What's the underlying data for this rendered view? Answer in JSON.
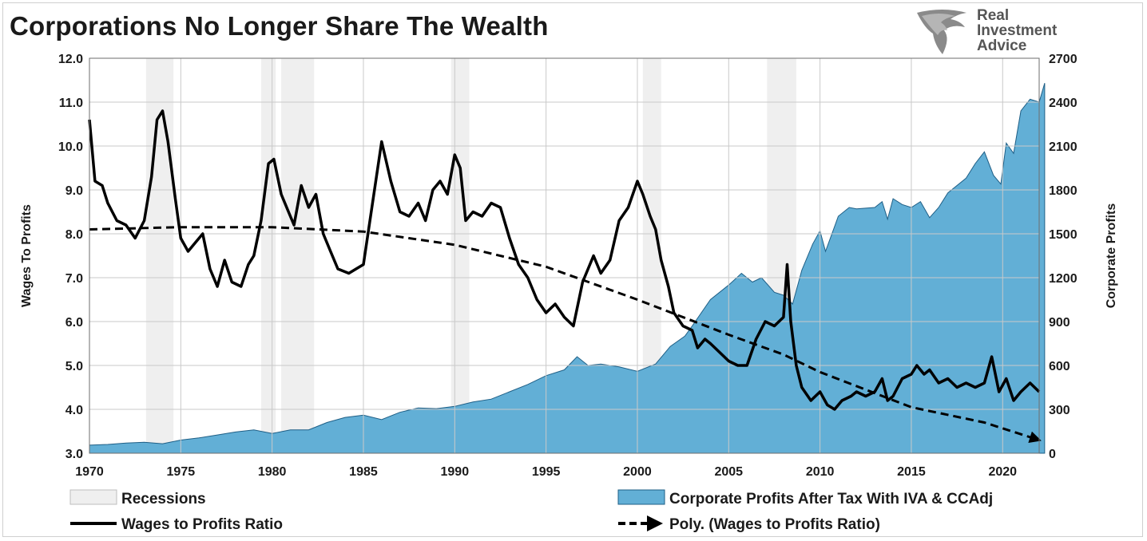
{
  "page": {
    "title": "Corporations No Longer Share The Wealth",
    "logo": {
      "line1": "Real",
      "line2": "Investment",
      "line3": "Advice",
      "icon": "eagle-head-icon"
    }
  },
  "colors": {
    "area_fill": "#62afd6",
    "area_edge": "#1f5f86",
    "ratio_line": "#000000",
    "poly_line": "#000000",
    "recession": "#efefef",
    "grid": "#c9c9c9"
  },
  "chart_data": {
    "type": "line",
    "title": "Corporations No Longer Share The Wealth",
    "xlim": [
      1970,
      2022
    ],
    "x_ticks": [
      "1970",
      "1975",
      "1980",
      "1985",
      "1990",
      "1995",
      "2000",
      "2005",
      "2010",
      "2015",
      "2020"
    ],
    "y_left": {
      "label": "Wages To Profits",
      "lim": [
        3.0,
        12.0
      ],
      "ticks": [
        "3.0",
        "4.0",
        "5.0",
        "6.0",
        "7.0",
        "8.0",
        "9.0",
        "10.0",
        "11.0",
        "12.0"
      ]
    },
    "y_right": {
      "label": "Corporate Profits",
      "lim": [
        0,
        2700
      ],
      "ticks": [
        "0",
        "300",
        "600",
        "900",
        "1200",
        "1500",
        "1800",
        "2100",
        "2400",
        "2700"
      ]
    },
    "grid": true,
    "legend_position": "bottom",
    "recessions": [
      [
        1973.1,
        1974.6
      ],
      [
        1979.4,
        1980.2
      ],
      [
        1980.5,
        1982.3
      ],
      [
        1989.8,
        1990.8
      ],
      [
        2000.3,
        2001.3
      ],
      [
        2007.1,
        2008.7
      ]
    ],
    "series": [
      {
        "name": "Corporate Profits After Tax With IVA & CCAdj",
        "kind": "area",
        "axis": "right",
        "points": [
          [
            1970,
            55
          ],
          [
            1971,
            60
          ],
          [
            1972,
            70
          ],
          [
            1973,
            75
          ],
          [
            1974,
            65
          ],
          [
            1975,
            90
          ],
          [
            1976,
            105
          ],
          [
            1977,
            125
          ],
          [
            1978,
            145
          ],
          [
            1979,
            160
          ],
          [
            1980,
            135
          ],
          [
            1981,
            160
          ],
          [
            1982,
            160
          ],
          [
            1983,
            210
          ],
          [
            1984,
            245
          ],
          [
            1985,
            260
          ],
          [
            1986,
            230
          ],
          [
            1987,
            280
          ],
          [
            1988,
            310
          ],
          [
            1989,
            305
          ],
          [
            1990,
            320
          ],
          [
            1991,
            350
          ],
          [
            1992,
            370
          ],
          [
            1993,
            420
          ],
          [
            1994,
            470
          ],
          [
            1995,
            530
          ],
          [
            1996,
            570
          ],
          [
            1996.7,
            660
          ],
          [
            1997.3,
            600
          ],
          [
            1998,
            610
          ],
          [
            1999,
            590
          ],
          [
            2000,
            560
          ],
          [
            2001,
            610
          ],
          [
            2001.8,
            730
          ],
          [
            2002.6,
            800
          ],
          [
            2003,
            870
          ],
          [
            2004,
            1050
          ],
          [
            2005,
            1150
          ],
          [
            2005.7,
            1230
          ],
          [
            2006.3,
            1170
          ],
          [
            2006.8,
            1200
          ],
          [
            2007.5,
            1100
          ],
          [
            2008,
            1080
          ],
          [
            2008.5,
            1020
          ],
          [
            2009,
            1250
          ],
          [
            2009.6,
            1430
          ],
          [
            2010,
            1520
          ],
          [
            2010.3,
            1380
          ],
          [
            2010.8,
            1550
          ],
          [
            2011,
            1620
          ],
          [
            2011.6,
            1680
          ],
          [
            2012,
            1670
          ],
          [
            2013,
            1680
          ],
          [
            2013.4,
            1720
          ],
          [
            2013.7,
            1600
          ],
          [
            2014,
            1740
          ],
          [
            2014.5,
            1700
          ],
          [
            2015,
            1680
          ],
          [
            2015.5,
            1720
          ],
          [
            2016,
            1610
          ],
          [
            2016.5,
            1680
          ],
          [
            2017,
            1780
          ],
          [
            2018,
            1880
          ],
          [
            2018.5,
            1980
          ],
          [
            2019,
            2060
          ],
          [
            2019.5,
            1900
          ],
          [
            2019.9,
            1840
          ],
          [
            2020.2,
            2120
          ],
          [
            2020.6,
            2050
          ],
          [
            2021,
            2340
          ],
          [
            2021.5,
            2420
          ],
          [
            2022,
            2400
          ],
          [
            2022.3,
            2530
          ]
        ]
      },
      {
        "name": "Wages to Profits Ratio",
        "kind": "line",
        "axis": "left",
        "points": [
          [
            1970,
            10.6
          ],
          [
            1970.3,
            9.2
          ],
          [
            1970.7,
            9.1
          ],
          [
            1971,
            8.7
          ],
          [
            1971.5,
            8.3
          ],
          [
            1972,
            8.2
          ],
          [
            1972.5,
            7.9
          ],
          [
            1973,
            8.3
          ],
          [
            1973.4,
            9.3
          ],
          [
            1973.7,
            10.6
          ],
          [
            1974,
            10.8
          ],
          [
            1974.3,
            10.1
          ],
          [
            1974.7,
            8.8
          ],
          [
            1975,
            7.9
          ],
          [
            1975.4,
            7.6
          ],
          [
            1975.8,
            7.8
          ],
          [
            1976.2,
            8.0
          ],
          [
            1976.6,
            7.2
          ],
          [
            1977,
            6.8
          ],
          [
            1977.4,
            7.4
          ],
          [
            1977.8,
            6.9
          ],
          [
            1978.3,
            6.8
          ],
          [
            1978.7,
            7.3
          ],
          [
            1979,
            7.5
          ],
          [
            1979.4,
            8.3
          ],
          [
            1979.8,
            9.6
          ],
          [
            1980.1,
            9.7
          ],
          [
            1980.5,
            8.9
          ],
          [
            1980.9,
            8.5
          ],
          [
            1981.2,
            8.2
          ],
          [
            1981.6,
            9.1
          ],
          [
            1982,
            8.6
          ],
          [
            1982.4,
            8.9
          ],
          [
            1982.8,
            8.0
          ],
          [
            1983.2,
            7.6
          ],
          [
            1983.6,
            7.2
          ],
          [
            1984.2,
            7.1
          ],
          [
            1984.6,
            7.2
          ],
          [
            1985,
            7.3
          ],
          [
            1985.5,
            8.7
          ],
          [
            1986,
            10.1
          ],
          [
            1986.5,
            9.2
          ],
          [
            1987,
            8.5
          ],
          [
            1987.5,
            8.4
          ],
          [
            1988,
            8.7
          ],
          [
            1988.4,
            8.3
          ],
          [
            1988.8,
            9.0
          ],
          [
            1989.2,
            9.2
          ],
          [
            1989.6,
            8.9
          ],
          [
            1990,
            9.8
          ],
          [
            1990.3,
            9.5
          ],
          [
            1990.6,
            8.3
          ],
          [
            1991,
            8.5
          ],
          [
            1991.5,
            8.4
          ],
          [
            1992,
            8.7
          ],
          [
            1992.5,
            8.6
          ],
          [
            1993,
            7.9
          ],
          [
            1993.5,
            7.3
          ],
          [
            1994,
            7.0
          ],
          [
            1994.5,
            6.5
          ],
          [
            1995,
            6.2
          ],
          [
            1995.5,
            6.4
          ],
          [
            1996,
            6.1
          ],
          [
            1996.5,
            5.9
          ],
          [
            1997,
            6.9
          ],
          [
            1997.6,
            7.5
          ],
          [
            1998,
            7.1
          ],
          [
            1998.5,
            7.4
          ],
          [
            1999,
            8.3
          ],
          [
            1999.5,
            8.6
          ],
          [
            2000,
            9.2
          ],
          [
            2000.3,
            8.9
          ],
          [
            2000.7,
            8.4
          ],
          [
            2001,
            8.1
          ],
          [
            2001.3,
            7.4
          ],
          [
            2001.7,
            6.8
          ],
          [
            2002,
            6.2
          ],
          [
            2002.5,
            5.9
          ],
          [
            2003,
            5.8
          ],
          [
            2003.3,
            5.4
          ],
          [
            2003.7,
            5.6
          ],
          [
            2004,
            5.5
          ],
          [
            2004.5,
            5.3
          ],
          [
            2005,
            5.1
          ],
          [
            2005.5,
            5.0
          ],
          [
            2006,
            5.0
          ],
          [
            2006.5,
            5.6
          ],
          [
            2007,
            6.0
          ],
          [
            2007.5,
            5.9
          ],
          [
            2008,
            6.1
          ],
          [
            2008.2,
            7.3
          ],
          [
            2008.4,
            6.0
          ],
          [
            2008.7,
            5.0
          ],
          [
            2009,
            4.5
          ],
          [
            2009.5,
            4.2
          ],
          [
            2010,
            4.4
          ],
          [
            2010.4,
            4.1
          ],
          [
            2010.8,
            4.0
          ],
          [
            2011.2,
            4.2
          ],
          [
            2011.7,
            4.3
          ],
          [
            2012,
            4.4
          ],
          [
            2012.5,
            4.3
          ],
          [
            2013,
            4.4
          ],
          [
            2013.4,
            4.7
          ],
          [
            2013.7,
            4.2
          ],
          [
            2014,
            4.3
          ],
          [
            2014.5,
            4.7
          ],
          [
            2015,
            4.8
          ],
          [
            2015.3,
            5.0
          ],
          [
            2015.7,
            4.8
          ],
          [
            2016,
            4.9
          ],
          [
            2016.5,
            4.6
          ],
          [
            2017,
            4.7
          ],
          [
            2017.5,
            4.5
          ],
          [
            2018,
            4.6
          ],
          [
            2018.5,
            4.5
          ],
          [
            2019,
            4.6
          ],
          [
            2019.4,
            5.2
          ],
          [
            2019.8,
            4.4
          ],
          [
            2020.2,
            4.7
          ],
          [
            2020.6,
            4.2
          ],
          [
            2021,
            4.4
          ],
          [
            2021.5,
            4.6
          ],
          [
            2022,
            4.4
          ]
        ]
      },
      {
        "name": "Poly. (Wages to Profits Ratio)",
        "kind": "trend",
        "axis": "left",
        "points": [
          [
            1970,
            8.1
          ],
          [
            1975,
            8.15
          ],
          [
            1980,
            8.15
          ],
          [
            1985,
            8.05
          ],
          [
            1990,
            7.75
          ],
          [
            1995,
            7.25
          ],
          [
            2000,
            6.5
          ],
          [
            2005,
            5.7
          ],
          [
            2008,
            5.25
          ],
          [
            2010,
            4.85
          ],
          [
            2015,
            4.05
          ],
          [
            2019,
            3.7
          ],
          [
            2022,
            3.3
          ]
        ]
      }
    ],
    "legend": [
      {
        "label": "Recessions",
        "kind": "box",
        "color": "#efefef"
      },
      {
        "label": "Corporate Profits After Tax With IVA & CCAdj",
        "kind": "box",
        "color": "#62afd6"
      },
      {
        "label": "Wages to Profits Ratio",
        "kind": "line"
      },
      {
        "label": "Poly. (Wages to Profits Ratio)",
        "kind": "dashed-arrow"
      }
    ]
  }
}
